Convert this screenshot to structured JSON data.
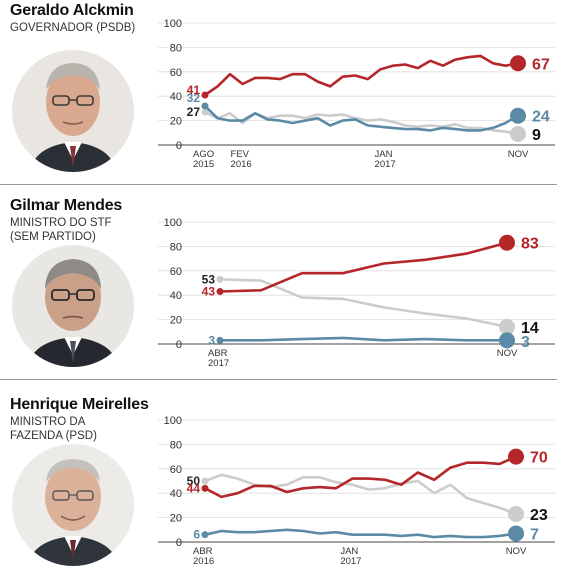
{
  "colors": {
    "approve": "#b5262a",
    "disapprove": "#cccccc",
    "neutral": "#5b8aa6",
    "grid": "#dddddd",
    "axis": "#444444",
    "label_dark": "#111111"
  },
  "chart_data": [
    {
      "type": "line",
      "title": "Geraldo Alckmin",
      "subtitle": "GOVERNADOR (PSDB)",
      "ylim": [
        0,
        100
      ],
      "yticks": [
        "100",
        "80",
        "60",
        "40",
        "20",
        "0"
      ],
      "xticks": [
        {
          "x": 0,
          "line1": "AGO",
          "line2": "2015"
        },
        {
          "x": 6,
          "line1": "FEV",
          "line2": "2016"
        },
        {
          "x": 29,
          "line1": "JAN",
          "line2": "2017"
        },
        {
          "x": 50,
          "line1": "NOV",
          "line2": ""
        }
      ],
      "x_max": 50,
      "series": [
        {
          "key": "approve",
          "start_label": "41",
          "end_label": "67",
          "x": [
            0,
            2,
            4,
            6,
            8,
            10,
            12,
            14,
            16,
            18,
            20,
            22,
            24,
            26,
            28,
            30,
            32,
            34,
            36,
            38,
            40,
            42,
            44,
            46,
            48,
            50
          ],
          "y": [
            41,
            48,
            58,
            50,
            55,
            55,
            54,
            58,
            58,
            52,
            48,
            56,
            57,
            54,
            62,
            65,
            66,
            63,
            69,
            65,
            70,
            72,
            73,
            67,
            65,
            67
          ]
        },
        {
          "key": "disapprove",
          "start_label": "27",
          "end_label": "9",
          "x": [
            0,
            2,
            4,
            6,
            8,
            10,
            12,
            14,
            16,
            18,
            20,
            22,
            24,
            26,
            28,
            30,
            32,
            34,
            36,
            38,
            40,
            42,
            44,
            46,
            48,
            50
          ],
          "y": [
            27,
            22,
            26,
            18,
            26,
            22,
            24,
            24,
            22,
            25,
            24,
            25,
            22,
            20,
            21,
            19,
            16,
            15,
            16,
            15,
            17,
            14,
            14,
            12,
            11,
            9
          ]
        },
        {
          "key": "neutral",
          "start_label": "32",
          "end_label": "24",
          "x": [
            0,
            2,
            4,
            6,
            8,
            10,
            12,
            14,
            16,
            18,
            20,
            22,
            24,
            26,
            28,
            30,
            32,
            34,
            36,
            38,
            40,
            42,
            44,
            46,
            48,
            50
          ],
          "y": [
            32,
            22,
            20,
            20,
            26,
            21,
            20,
            18,
            20,
            22,
            16,
            20,
            21,
            16,
            15,
            14,
            13,
            13,
            12,
            14,
            13,
            12,
            12,
            14,
            18,
            24
          ]
        }
      ]
    },
    {
      "type": "line",
      "title": "Gilmar Mendes",
      "subtitle": "MINISTRO DO STF\n(SEM PARTIDO)",
      "ylim": [
        0,
        100
      ],
      "yticks": [
        "100",
        "80",
        "60",
        "40",
        "20",
        "0"
      ],
      "xticks": [
        {
          "x": 0,
          "line1": "ABR",
          "line2": "2017"
        },
        {
          "x": 7,
          "line1": "NOV",
          "line2": ""
        }
      ],
      "x_max": 7,
      "series": [
        {
          "key": "approve",
          "start_label": "43",
          "end_label": "83",
          "x": [
            0,
            1,
            2,
            3,
            4,
            5,
            6,
            7
          ],
          "y": [
            43,
            44,
            58,
            58,
            66,
            69,
            74,
            83
          ]
        },
        {
          "key": "disapprove",
          "start_label": "53",
          "end_label": "14",
          "x": [
            0,
            1,
            2,
            3,
            4,
            5,
            6,
            7
          ],
          "y": [
            53,
            52,
            38,
            37,
            30,
            25,
            21,
            14
          ]
        },
        {
          "key": "neutral",
          "start_label": "3",
          "end_label": "3",
          "x": [
            0,
            1,
            2,
            3,
            4,
            5,
            6,
            7
          ],
          "y": [
            3,
            3,
            4,
            5,
            3,
            4,
            3,
            3
          ]
        }
      ]
    },
    {
      "type": "line",
      "title": "Henrique Meirelles",
      "subtitle": "MINISTRO DA\nFAZENDA (PSD)",
      "ylim": [
        0,
        100
      ],
      "yticks": [
        "100",
        "80",
        "60",
        "40",
        "20",
        "0"
      ],
      "xticks": [
        {
          "x": 0,
          "line1": "ABR",
          "line2": "2016"
        },
        {
          "x": 9,
          "line1": "JAN",
          "line2": "2017"
        },
        {
          "x": 19,
          "line1": "NOV",
          "line2": ""
        }
      ],
      "x_max": 19,
      "series": [
        {
          "key": "approve",
          "start_label": "44",
          "end_label": "70",
          "x": [
            0,
            1,
            2,
            3,
            4,
            5,
            6,
            7,
            8,
            9,
            10,
            11,
            12,
            13,
            14,
            15,
            16,
            17,
            18,
            19
          ],
          "y": [
            44,
            37,
            40,
            46,
            46,
            41,
            44,
            45,
            44,
            52,
            52,
            51,
            47,
            57,
            51,
            61,
            65,
            65,
            64,
            70
          ]
        },
        {
          "key": "disapprove",
          "start_label": "50",
          "end_label": "23",
          "x": [
            0,
            1,
            2,
            3,
            4,
            5,
            6,
            7,
            8,
            9,
            10,
            11,
            12,
            13,
            14,
            15,
            16,
            17,
            18,
            19
          ],
          "y": [
            50,
            55,
            52,
            47,
            45,
            47,
            53,
            53,
            49,
            47,
            43,
            44,
            48,
            50,
            40,
            47,
            36,
            32,
            28,
            23
          ]
        },
        {
          "key": "neutral",
          "start_label": "6",
          "end_label": "7",
          "x": [
            0,
            1,
            2,
            3,
            4,
            5,
            6,
            7,
            8,
            9,
            10,
            11,
            12,
            13,
            14,
            15,
            16,
            17,
            18,
            19
          ],
          "y": [
            6,
            9,
            8,
            8,
            9,
            10,
            9,
            7,
            8,
            6,
            6,
            6,
            5,
            6,
            4,
            5,
            4,
            4,
            5,
            7
          ]
        }
      ]
    }
  ]
}
